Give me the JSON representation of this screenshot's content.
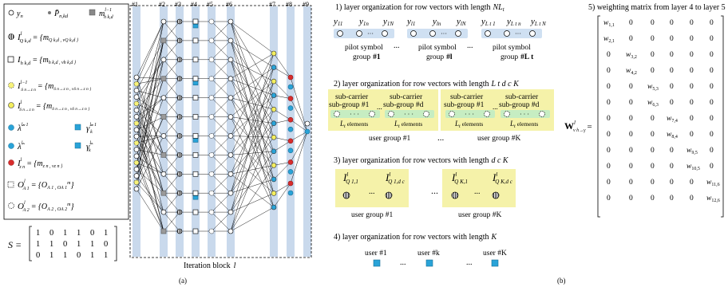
{
  "legend": {
    "yn": "y",
    "yn_sub": "n",
    "pbar": "P̄",
    "pbar_sub": "n,kd",
    "mh": "m",
    "mh_sub": "h k,d",
    "mh_sup": "l−1",
    "iq": "I",
    "iq_sup": "l",
    "iq_sub": "Q k,d",
    "iq_rhs": "= {m",
    "iq_rhs2": "Q k,d , v",
    "iq_rhs3": "Q k,d }",
    "ih": "I",
    "ih_sub": "h k,d",
    "ih_rhs": "= {m",
    "ih_rhs2": "h k,d , v",
    "ih_rhs3": "h k,d }",
    "idy_prev": "I",
    "idy_prev_sup": "l−1",
    "idy_prev_sub": "δ n→z n",
    "idy_prev_rhs": "= {m",
    "idy_prev_rhs2": "δ n→z n , v",
    "idy_prev_rhs3": "δ n→z n }",
    "idy": "I",
    "idy_sup": "l",
    "idy_sub": "δ n→z n",
    "idy_rhs": "= {m",
    "idy_rhs2": "δ n→z n , v",
    "idy_rhs3": "δ n→z n }",
    "lam_prev": "λ̂",
    "lam_prev_sup": "l−1",
    "gam_prev": "γ̂",
    "gam_prev_sup": "l−1",
    "gam_prev_sub": "k",
    "lam": "λ̂",
    "lam_sup": "l",
    "gam": "γ̂",
    "gam_sup": "l",
    "gam_sub": "k",
    "iz": "I",
    "iz_sup": "l",
    "iz_sub": "z n",
    "iz_rhs": "= {m",
    "iz_rhs2": "z n , v",
    "iz_rhs3": "z n }",
    "oa1": "O",
    "oa1_sup": "l",
    "oa1_sub": "A 1",
    "oa1_rhs": "= {O",
    "oa1_rhs2": "A 1 , O",
    "oa1_rhs3": "A 1",
    "oa1_rhs3_sup": "m",
    "oa2": "O",
    "oa2_sup": "l",
    "oa2_sub": "A 2",
    "oa2_rhs": "= {O",
    "oa2_rhs2": "A 2 , O",
    "oa2_rhs3": "A 2",
    "oa2_rhs3_sup": "m"
  },
  "matrix_s": {
    "label": "S =",
    "rows": [
      [
        "1",
        "0",
        "1",
        "1",
        "0",
        "1"
      ],
      [
        "1",
        "1",
        "0",
        "1",
        "1",
        "0"
      ],
      [
        "0",
        "1",
        "1",
        "0",
        "1",
        "1"
      ]
    ]
  },
  "network": {
    "layer_labels": [
      "#1",
      "#2",
      "#3",
      "#4",
      "#5",
      "#6",
      "#7",
      "#8",
      "#9"
    ],
    "block_label": "Iteration block",
    "block_var": "l",
    "caption": "(a)"
  },
  "panel_b": {
    "s1_title": "1) layer organization for row vectors with length",
    "s1_var": "NL",
    "s1_var_sub": "t",
    "groups1": [
      {
        "y1": "y",
        "y1_sub": "11",
        "y2": "y",
        "y2_sub": "1n",
        "y3": "y",
        "y3_sub": "1N",
        "label1": "pilot symbol",
        "label2": "group",
        "num": "#1"
      },
      {
        "y1": "y",
        "y1_sub": "l1",
        "y2": "y",
        "y2_sub": "ln",
        "y3": "y",
        "y3_sub": "lN",
        "label1": "pilot symbol",
        "label2": "group",
        "num": "#l"
      },
      {
        "y1": "y",
        "y1_sub": "L t 1",
        "y2": "y",
        "y2_sub": "L t n",
        "y3": "y",
        "y3_sub": "L t N",
        "label1": "pilot symbol",
        "label2": "group",
        "num": "#L t"
      }
    ],
    "ellipsis": "...",
    "s2_title": "2) layer organization for row vectors with length",
    "s2_var": "L t d c K",
    "subcarriers": [
      {
        "t1": "sub-carrier",
        "t2": "sub-group #1",
        "el": "elements"
      },
      {
        "t1": "sub-carrier",
        "t2": "sub-group #d",
        "el": "elements"
      },
      {
        "t1": "sub-carrier",
        "t2": "sub-group #1",
        "el": "elements"
      },
      {
        "t1": "sub-carrier",
        "t2": "sub-group #d",
        "el": "elements"
      }
    ],
    "lt": "L",
    "lt_sub": "t",
    "dc_sub": "c",
    "usergroup1": "user group #1",
    "usergroupK": "user group #K",
    "s3_title": "3) layer organization for row vectors with length",
    "s3_var": "d c K",
    "s3_items": [
      {
        "sym": "I",
        "sup": "l",
        "sub": "Q 1,1"
      },
      {
        "sym": "I",
        "sup": "l",
        "sub": "Q 1,d c"
      },
      {
        "sym": "I",
        "sup": "l",
        "sub": "Q K,1"
      },
      {
        "sym": "I",
        "sup": "l",
        "sub": "Q K,d c"
      }
    ],
    "s4_title": "4) layer organization for row vectors with length",
    "s4_var": "K",
    "users": [
      "user #1",
      "user #k",
      "user #K"
    ],
    "caption": "(b)"
  },
  "weights": {
    "title": "5) weighting matrix from layer 4 to layer 5",
    "label": "W",
    "label_sup": "l",
    "label_sub": "v h→γ",
    "rows": [
      [
        "w1,1",
        "0",
        "0",
        "0",
        "0",
        "0"
      ],
      [
        "w2,1",
        "0",
        "0",
        "0",
        "0",
        "0"
      ],
      [
        "0",
        "w3,2",
        "0",
        "0",
        "0",
        "0"
      ],
      [
        "0",
        "w4,2",
        "0",
        "0",
        "0",
        "0"
      ],
      [
        "0",
        "0",
        "w5,3",
        "0",
        "0",
        "0"
      ],
      [
        "0",
        "0",
        "w6,3",
        "0",
        "0",
        "0"
      ],
      [
        "0",
        "0",
        "0",
        "w7,4",
        "0",
        "0"
      ],
      [
        "0",
        "0",
        "0",
        "w8,4",
        "0",
        "0"
      ],
      [
        "0",
        "0",
        "0",
        "0",
        "w9,5",
        "0"
      ],
      [
        "0",
        "0",
        "0",
        "0",
        "w10,5",
        "0"
      ],
      [
        "0",
        "0",
        "0",
        "0",
        "0",
        "w11,6"
      ],
      [
        "0",
        "0",
        "0",
        "0",
        "0",
        "w12,6"
      ]
    ]
  },
  "colors": {
    "band": "#c9d9ec",
    "cyan": "#29a3d8",
    "yellow": "#f3ee5e",
    "red": "#d92c2c",
    "gray": "#9a9a9a",
    "pilot_fill": "#cfe0f2",
    "sub_fill": "#f5f2a9",
    "sub_inner": "#c6edc2",
    "user_fill": "#f5f2a9"
  }
}
